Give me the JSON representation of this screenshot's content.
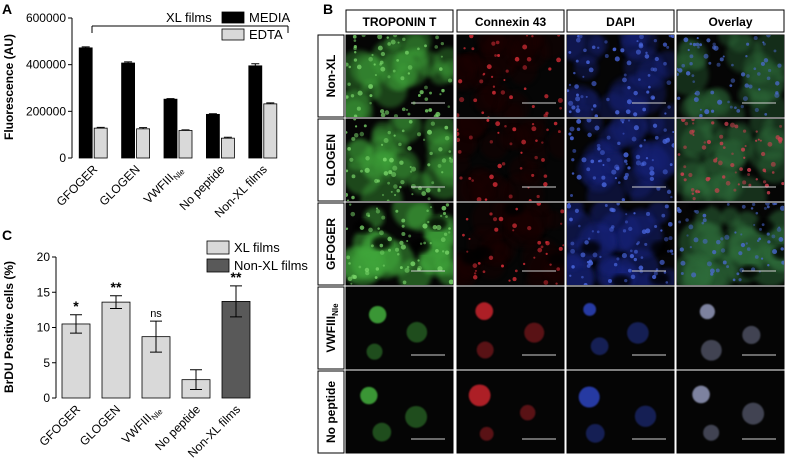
{
  "panel_a": {
    "letter": "A",
    "annotation": "XL films",
    "chart_data": {
      "type": "bar",
      "categories": [
        "GFOGER",
        "GLOGEN",
        "VWFIII",
        "No peptide",
        "Non-XL films"
      ],
      "category_subscripts": [
        "",
        "",
        "Nle",
        "",
        ""
      ],
      "series": [
        {
          "name": "MEDIA",
          "color": "#000000",
          "values": [
            472000,
            407000,
            252000,
            187000,
            395000
          ],
          "errors": [
            4000,
            5000,
            2500,
            2500,
            9000
          ]
        },
        {
          "name": "EDTA",
          "color": "#d9d9d9",
          "values": [
            128000,
            125000,
            118000,
            85000,
            232000
          ],
          "errors": [
            3000,
            5000,
            2500,
            4000,
            4000
          ]
        }
      ],
      "ylabel": "Fluorescence (AU)",
      "ylim": [
        0,
        600000
      ],
      "yticks": [
        "0",
        "200000",
        "400000",
        "600000"
      ],
      "legend_placement": "top-right",
      "grid": false
    }
  },
  "panel_c": {
    "letter": "C",
    "chart_data": {
      "type": "bar",
      "categories": [
        "GFOGER",
        "GLOGEN",
        "VWFIII",
        "No peptide",
        "Non-XL films"
      ],
      "category_subscripts": [
        "",
        "",
        "Nle",
        "",
        ""
      ],
      "values": [
        10.5,
        13.6,
        8.7,
        2.6,
        13.7
      ],
      "errors": [
        1.3,
        0.9,
        2.2,
        1.4,
        2.2
      ],
      "significance": [
        "*",
        "**",
        "ns",
        "",
        "**"
      ],
      "bar_groups": [
        "XL films",
        "XL films",
        "XL films",
        "XL films",
        "Non-XL films"
      ],
      "series": [
        {
          "name": "XL films",
          "color": "#d9d9d9"
        },
        {
          "name": "Non-XL films",
          "color": "#595959"
        }
      ],
      "ylabel": "BrDU Positive cells (%)",
      "ylim": [
        0,
        20
      ],
      "yticks": [
        "0",
        "5",
        "10",
        "15",
        "20"
      ],
      "legend_placement": "top-right",
      "grid": false
    }
  },
  "panel_b": {
    "letter": "B",
    "columns": [
      "TROPONIN T",
      "Connexin 43",
      "DAPI",
      "Overlay"
    ],
    "rows": [
      {
        "label": "Non-XL",
        "sub": ""
      },
      {
        "label": "GLOGEN",
        "sub": ""
      },
      {
        "label": "GFOGER",
        "sub": ""
      },
      {
        "label": "VWFIII",
        "sub": "Nle"
      },
      {
        "label": "No peptide",
        "sub": ""
      }
    ],
    "channel_colors": {
      "troponin": "#3fa63a",
      "connexin": "#c0202a",
      "dapi": "#2b3fb4",
      "overlay": "#5a8a5a"
    }
  }
}
